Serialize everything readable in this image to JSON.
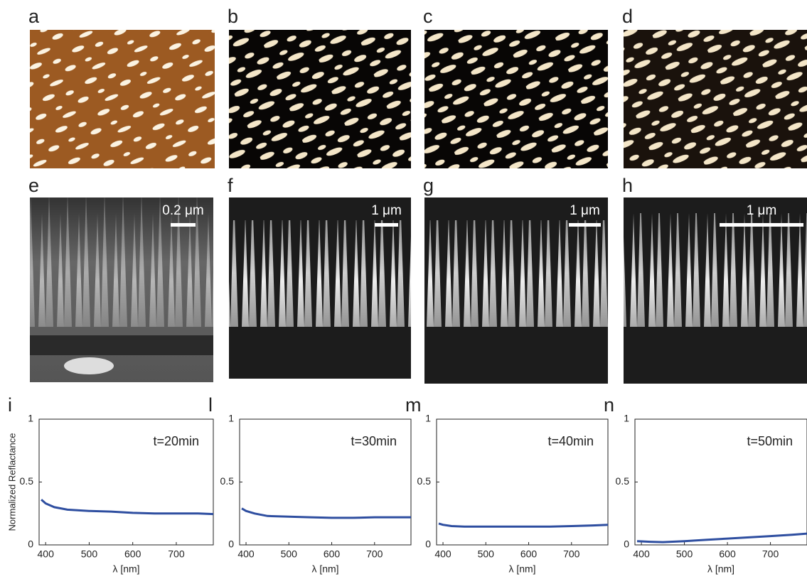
{
  "images": [
    {
      "label": "a"
    },
    {
      "label": "b"
    },
    {
      "label": "c"
    },
    {
      "label": "d"
    },
    {
      "label": "e",
      "scale_bar": "0.2 μm"
    },
    {
      "label": "f",
      "scale_bar": "1 μm"
    },
    {
      "label": "g",
      "scale_bar": "1 μm"
    },
    {
      "label": "h",
      "scale_bar": "1 μm"
    }
  ],
  "chart_data": [
    {
      "type": "line",
      "label": "i",
      "annotation": "t=20min",
      "ylabel": "Normalized Reflactance",
      "xlabel": "λ [nm]",
      "x": [
        390,
        400,
        420,
        450,
        500,
        550,
        600,
        650,
        700,
        750,
        785
      ],
      "values": [
        0.36,
        0.33,
        0.3,
        0.28,
        0.27,
        0.265,
        0.255,
        0.25,
        0.25,
        0.25,
        0.245
      ],
      "color": "#2e4ea0",
      "xlim": [
        385,
        785
      ],
      "ylim": [
        0,
        1
      ],
      "xticks": [
        400,
        500,
        600,
        700
      ],
      "yticks": [
        0,
        0.5,
        1
      ]
    },
    {
      "type": "line",
      "label": "l",
      "annotation": "t=30min",
      "xlabel": "λ [nm]",
      "x": [
        390,
        400,
        420,
        450,
        500,
        550,
        600,
        650,
        700,
        750,
        785
      ],
      "values": [
        0.29,
        0.27,
        0.25,
        0.23,
        0.225,
        0.22,
        0.215,
        0.215,
        0.22,
        0.22,
        0.22
      ],
      "color": "#2e4ea0",
      "xlim": [
        385,
        785
      ],
      "ylim": [
        0,
        1
      ],
      "xticks": [
        400,
        500,
        600,
        700
      ],
      "yticks": [
        0,
        0.5,
        1
      ]
    },
    {
      "type": "line",
      "label": "m",
      "annotation": "t=40min",
      "xlabel": "λ [nm]",
      "x": [
        390,
        400,
        420,
        450,
        500,
        550,
        600,
        650,
        700,
        750,
        785
      ],
      "values": [
        0.17,
        0.16,
        0.15,
        0.145,
        0.145,
        0.145,
        0.145,
        0.145,
        0.15,
        0.155,
        0.16
      ],
      "color": "#2e4ea0",
      "xlim": [
        385,
        785
      ],
      "ylim": [
        0,
        1
      ],
      "xticks": [
        400,
        500,
        600,
        700
      ],
      "yticks": [
        0,
        0.5,
        1
      ]
    },
    {
      "type": "line",
      "label": "n",
      "annotation": "t=50min",
      "xlabel": "λ [nm]",
      "x": [
        390,
        400,
        420,
        450,
        500,
        550,
        600,
        650,
        700,
        750,
        785
      ],
      "values": [
        0.03,
        0.028,
        0.025,
        0.022,
        0.03,
        0.04,
        0.05,
        0.06,
        0.07,
        0.08,
        0.09
      ],
      "color": "#2e4ea0",
      "xlim": [
        385,
        785
      ],
      "ylim": [
        0,
        1
      ],
      "xticks": [
        400,
        500,
        600,
        700
      ],
      "yticks": [
        0,
        0.5,
        1
      ]
    }
  ]
}
